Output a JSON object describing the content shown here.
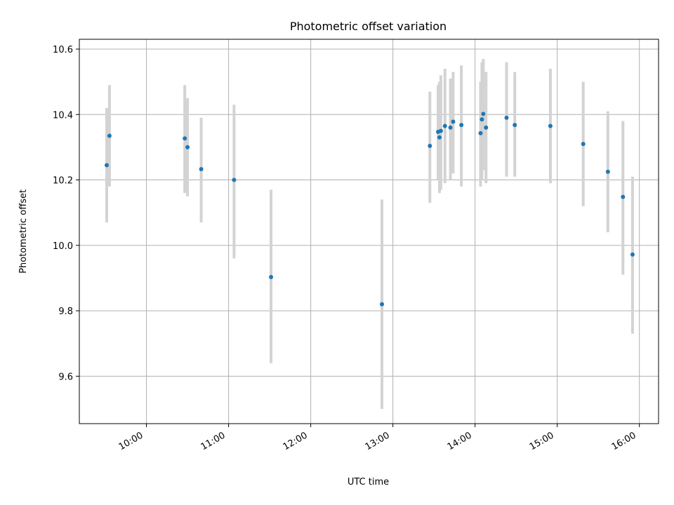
{
  "chart_data": {
    "type": "scatter",
    "title": "Photometric offset variation",
    "xlabel": "UTC time",
    "ylabel": "Photometric offset",
    "x_is_time": true,
    "xlim": [
      "09:11",
      "16:14"
    ],
    "ylim": [
      9.455,
      10.63
    ],
    "x_ticks": [
      "10:00",
      "11:00",
      "12:00",
      "13:00",
      "14:00",
      "15:00",
      "16:00"
    ],
    "y_ticks": [
      "9.6",
      "9.8",
      "10.0",
      "10.2",
      "10.4",
      "10.6"
    ],
    "grid": true,
    "marker_color": "#1f77b4",
    "errorbar_color": "#d3d3d3",
    "series": [
      {
        "points": [
          {
            "x": "09:31",
            "y": 10.245,
            "lo": 10.07,
            "hi": 10.42
          },
          {
            "x": "09:33",
            "y": 10.335,
            "lo": 10.18,
            "hi": 10.49
          },
          {
            "x": "10:28",
            "y": 10.327,
            "lo": 10.16,
            "hi": 10.49
          },
          {
            "x": "10:30",
            "y": 10.3,
            "lo": 10.15,
            "hi": 10.45
          },
          {
            "x": "10:40",
            "y": 10.233,
            "lo": 10.07,
            "hi": 10.39
          },
          {
            "x": "11:04",
            "y": 10.2,
            "lo": 9.96,
            "hi": 10.43
          },
          {
            "x": "11:31",
            "y": 9.903,
            "lo": 9.64,
            "hi": 10.17
          },
          {
            "x": "12:52",
            "y": 9.82,
            "lo": 9.5,
            "hi": 10.14
          },
          {
            "x": "13:27",
            "y": 10.304,
            "lo": 10.13,
            "hi": 10.47
          },
          {
            "x": "13:33",
            "y": 10.347,
            "lo": 10.2,
            "hi": 10.49
          },
          {
            "x": "13:34",
            "y": 10.33,
            "lo": 10.16,
            "hi": 10.5
          },
          {
            "x": "13:35",
            "y": 10.35,
            "lo": 10.17,
            "hi": 10.52
          },
          {
            "x": "13:38",
            "y": 10.365,
            "lo": 10.19,
            "hi": 10.54
          },
          {
            "x": "13:42",
            "y": 10.36,
            "lo": 10.2,
            "hi": 10.51
          },
          {
            "x": "13:44",
            "y": 10.378,
            "lo": 10.22,
            "hi": 10.53
          },
          {
            "x": "13:50",
            "y": 10.368,
            "lo": 10.18,
            "hi": 10.55
          },
          {
            "x": "14:04",
            "y": 10.343,
            "lo": 10.18,
            "hi": 10.5
          },
          {
            "x": "14:05",
            "y": 10.385,
            "lo": 10.2,
            "hi": 10.56
          },
          {
            "x": "14:06",
            "y": 10.402,
            "lo": 10.23,
            "hi": 10.57
          },
          {
            "x": "14:08",
            "y": 10.36,
            "lo": 10.19,
            "hi": 10.53
          },
          {
            "x": "14:23",
            "y": 10.39,
            "lo": 10.21,
            "hi": 10.56
          },
          {
            "x": "14:29",
            "y": 10.368,
            "lo": 10.21,
            "hi": 10.53
          },
          {
            "x": "14:55",
            "y": 10.365,
            "lo": 10.19,
            "hi": 10.54
          },
          {
            "x": "15:19",
            "y": 10.31,
            "lo": 10.12,
            "hi": 10.5
          },
          {
            "x": "15:37",
            "y": 10.225,
            "lo": 10.04,
            "hi": 10.41
          },
          {
            "x": "15:48",
            "y": 10.148,
            "lo": 9.91,
            "hi": 10.38
          },
          {
            "x": "15:55",
            "y": 9.972,
            "lo": 9.73,
            "hi": 10.21
          }
        ]
      }
    ]
  }
}
